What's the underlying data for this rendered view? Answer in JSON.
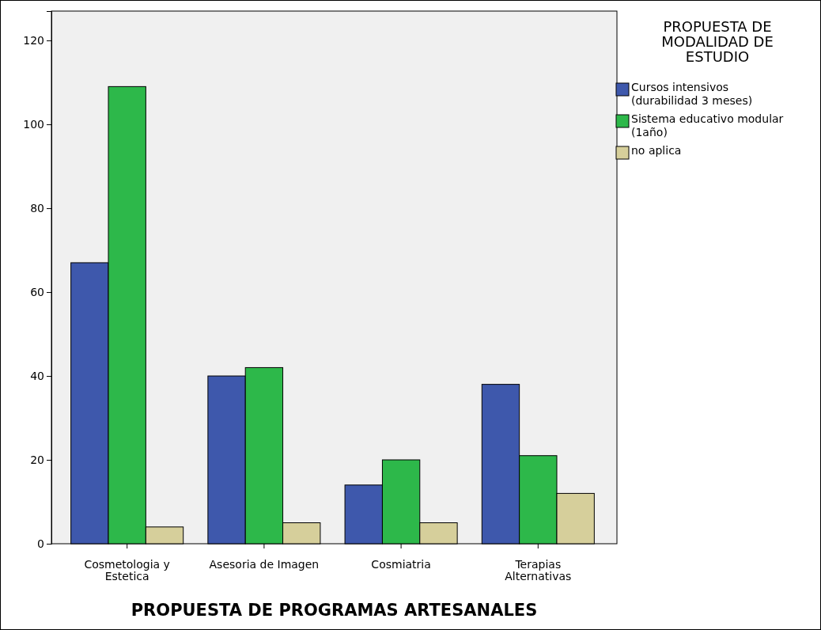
{
  "chart_data": {
    "type": "bar",
    "xlabel": "PROPUESTA DE PROGRAMAS ARTESANALES",
    "legend_title": "PROPUESTA DE\nMODALIDAD DE\nESTUDIO",
    "legend": "right",
    "categories": [
      "Cosmetologia y\nEstetica",
      "Asesoria de Imagen",
      "Cosmiatria",
      "Terapias\nAlternativas"
    ],
    "series": [
      {
        "name": "Cursos intensivos\n(durabilidad 3 meses)",
        "color": "#3e58ac",
        "values": [
          67,
          40,
          14,
          38
        ]
      },
      {
        "name": "Sistema educativo modular\n(1año)",
        "color": "#2db84a",
        "values": [
          109,
          42,
          20,
          21
        ]
      },
      {
        "name": "no aplica",
        "color": "#d6cf9b",
        "values": [
          4,
          5,
          5,
          12
        ]
      }
    ],
    "ylim": [
      0,
      127
    ],
    "yticks": [
      0,
      20,
      40,
      60,
      80,
      100,
      120
    ],
    "grid": false
  }
}
